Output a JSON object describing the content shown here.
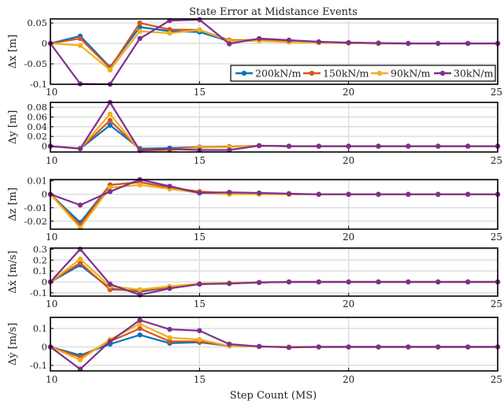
{
  "chart_data": {
    "type": "line",
    "title": "State Error at Midstance Events",
    "xlabel": "Step Count (MS)",
    "x": [
      10,
      11,
      12,
      13,
      14,
      15,
      16,
      17,
      18,
      19,
      20,
      21,
      22,
      23,
      24,
      25
    ],
    "xlim": [
      10,
      25
    ],
    "xticks": [
      10,
      15,
      20,
      25
    ],
    "grid": true,
    "legend": {
      "placement": "bottom-right of first panel",
      "entries": [
        "200kN/m",
        "150kN/m",
        "90kN/m",
        "30kN/m"
      ]
    },
    "colors": [
      "#0072BD",
      "#D95319",
      "#EDB120",
      "#7E2F8E"
    ],
    "panels": [
      {
        "ylabel": "Δx [m]",
        "ylim": [
          -0.1,
          0.06
        ],
        "yticks": [
          -0.1,
          -0.05,
          0,
          0.05
        ],
        "ytick_labels": [
          "-0.1",
          "-0.05",
          "0",
          "0.05"
        ],
        "series": [
          {
            "name": "200kN/m",
            "values": [
              0,
              0.018,
              -0.058,
              0.04,
              0.03,
              0.028,
              0.005,
              0.01,
              0.005,
              0.003,
              0.001,
              0,
              0,
              0,
              0,
              0
            ]
          },
          {
            "name": "150kN/m",
            "values": [
              0,
              0.012,
              -0.06,
              0.05,
              0.034,
              0.033,
              0.008,
              0.008,
              0.004,
              0.002,
              0.001,
              0,
              0,
              0,
              0,
              0
            ]
          },
          {
            "name": "90kN/m",
            "values": [
              0,
              -0.005,
              -0.065,
              0.03,
              0.025,
              0.033,
              0.006,
              0.006,
              0.003,
              0.002,
              0.001,
              0,
              0,
              0,
              0,
              0
            ]
          },
          {
            "name": "30kN/m",
            "values": [
              0,
              -0.099,
              -0.1,
              0.012,
              0.056,
              0.058,
              -0.001,
              0.012,
              0.008,
              0.004,
              0.002,
              0.001,
              0,
              0,
              0,
              0
            ]
          }
        ]
      },
      {
        "ylabel": "Δy [m]",
        "ylim": [
          -0.012,
          0.09
        ],
        "yticks": [
          0,
          0.02,
          0.04,
          0.06,
          0.08
        ],
        "ytick_labels": [
          "0",
          "0.02",
          "0.04",
          "0.06",
          "0.08"
        ],
        "series": [
          {
            "name": "200kN/m",
            "values": [
              0,
              -0.005,
              0.043,
              -0.005,
              -0.004,
              -0.002,
              -0.001,
              0.001,
              0,
              0,
              0,
              0,
              0,
              0,
              0,
              0
            ]
          },
          {
            "name": "150kN/m",
            "values": [
              0,
              -0.005,
              0.053,
              -0.007,
              -0.006,
              -0.002,
              -0.001,
              0.001,
              0,
              0,
              0,
              0,
              0,
              0,
              0,
              0
            ]
          },
          {
            "name": "90kN/m",
            "values": [
              0,
              -0.005,
              0.066,
              -0.009,
              -0.009,
              -0.003,
              -0.002,
              0.001,
              0,
              0,
              0,
              0,
              0,
              0,
              0,
              0
            ]
          },
          {
            "name": "30kN/m",
            "values": [
              0,
              -0.005,
              0.09,
              -0.009,
              -0.006,
              -0.008,
              -0.008,
              0.001,
              0,
              0,
              0,
              0,
              0,
              0,
              0,
              0
            ]
          }
        ]
      },
      {
        "ylabel": "Δz [m]",
        "ylim": [
          -0.026,
          0.011
        ],
        "yticks": [
          -0.02,
          -0.01,
          0,
          0.01
        ],
        "ytick_labels": [
          "-0.02",
          "-0.01",
          "0",
          "0.01"
        ],
        "series": [
          {
            "name": "200kN/m",
            "values": [
              0,
              -0.021,
              0.007,
              0.009,
              0.005,
              0.001,
              0.001,
              0.0005,
              0,
              0,
              0,
              0,
              0,
              0,
              0,
              0
            ]
          },
          {
            "name": "150kN/m",
            "values": [
              0,
              -0.023,
              0.007,
              0.009,
              0.005,
              0.002,
              0.001,
              0.0005,
              0,
              0,
              0,
              0,
              0,
              0,
              0,
              0
            ]
          },
          {
            "name": "90kN/m",
            "values": [
              0,
              -0.025,
              0.005,
              0.007,
              0.004,
              0.001,
              0,
              0,
              0,
              0,
              0,
              0,
              0,
              0,
              0,
              0
            ]
          },
          {
            "name": "30kN/m",
            "values": [
              0,
              -0.008,
              0.002,
              0.011,
              0.006,
              0.001,
              0.0015,
              0.001,
              0.0005,
              0,
              0,
              0,
              0,
              0,
              0,
              0
            ]
          }
        ]
      },
      {
        "ylabel": "Δẋ [m/s]",
        "ylim": [
          -0.13,
          0.31
        ],
        "yticks": [
          -0.1,
          0,
          0.1,
          0.2,
          0.3
        ],
        "ytick_labels": [
          "-0.1",
          "0",
          "0.1",
          "0.2",
          "0.3"
        ],
        "series": [
          {
            "name": "200kN/m",
            "values": [
              0,
              0.155,
              -0.06,
              -0.09,
              -0.05,
              -0.02,
              -0.012,
              -0.005,
              0,
              0,
              0,
              0,
              0,
              0,
              0,
              0
            ]
          },
          {
            "name": "150kN/m",
            "values": [
              0,
              0.175,
              -0.07,
              -0.08,
              -0.05,
              -0.02,
              -0.012,
              -0.005,
              0,
              0,
              0,
              0,
              0,
              0,
              0,
              0
            ]
          },
          {
            "name": "90kN/m",
            "values": [
              0,
              0.21,
              -0.04,
              -0.07,
              -0.04,
              -0.015,
              -0.008,
              -0.003,
              0,
              0,
              0,
              0,
              0,
              0,
              0,
              0
            ]
          },
          {
            "name": "30kN/m",
            "values": [
              0,
              0.3,
              -0.02,
              -0.12,
              -0.06,
              -0.02,
              -0.015,
              -0.005,
              0,
              0,
              0,
              0,
              0,
              0,
              0,
              0
            ]
          }
        ]
      },
      {
        "ylabel": "Δẏ [m/s]",
        "ylim": [
          -0.13,
          0.16
        ],
        "yticks": [
          -0.1,
          0,
          0.1
        ],
        "ytick_labels": [
          "-0.1",
          "0",
          "0.1"
        ],
        "series": [
          {
            "name": "200kN/m",
            "values": [
              0,
              -0.045,
              0.015,
              0.065,
              0.02,
              0.025,
              0.005,
              0.002,
              0,
              0,
              0,
              0,
              0,
              0,
              0,
              0
            ]
          },
          {
            "name": "150kN/m",
            "values": [
              0,
              -0.055,
              0.03,
              0.1,
              0.03,
              0.03,
              0.005,
              0.002,
              0,
              0,
              0,
              0,
              0,
              0,
              0,
              0
            ]
          },
          {
            "name": "90kN/m",
            "values": [
              0,
              -0.07,
              0.04,
              0.125,
              0.05,
              0.04,
              0.005,
              0.002,
              0,
              0,
              0,
              0,
              0,
              0,
              0,
              0
            ]
          },
          {
            "name": "30kN/m",
            "values": [
              0,
              -0.12,
              0.03,
              0.145,
              0.095,
              0.088,
              0.015,
              0.003,
              -0.003,
              0,
              0,
              0,
              0,
              0,
              0,
              0
            ]
          }
        ]
      }
    ]
  }
}
